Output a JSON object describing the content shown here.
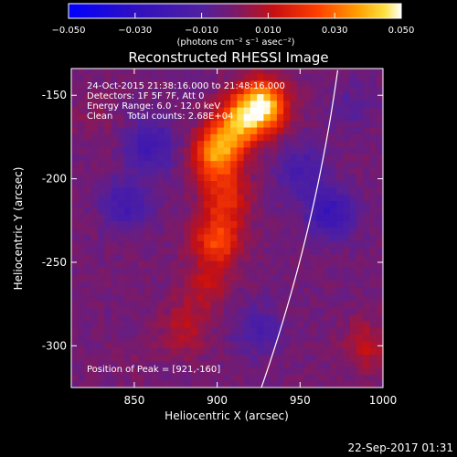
{
  "chart_data": {
    "type": "heatmap",
    "title": "Reconstructed RHESSI Image",
    "xlabel": "Heliocentric X (arcsec)",
    "ylabel": "Heliocentric Y (arcsec)",
    "xlim": [
      812,
      1000
    ],
    "ylim": [
      -325,
      -134
    ],
    "xticks": [
      850,
      900,
      950,
      1000
    ],
    "xtick_labels": [
      "850",
      "900",
      "950",
      "1000"
    ],
    "yticks": [
      -150,
      -200,
      -250,
      -300
    ],
    "ytick_labels": [
      "-150",
      "-200",
      "-250",
      "-300"
    ],
    "colorbar": {
      "range": [
        -0.05,
        0.05
      ],
      "ticks": [
        -0.05,
        -0.03,
        -0.01,
        0.01,
        0.03,
        0.05
      ],
      "tick_labels": [
        "−0.050",
        "−0.030",
        "−0.010",
        "0.010",
        "0.030",
        "0.050"
      ],
      "unit": "(photons cm⁻² s⁻¹ asec⁻²)"
    },
    "annotations": [
      "24-Oct-2015 21:38:16.000 to 21:48:16.000",
      "Detectors: 1F 5F 7F, Att 0",
      "Energy Range: 6.0 - 12.0 keV",
      "Clean     Total counts: 2.68E+04"
    ],
    "peak_label": "Position of Peak = [921,-160]",
    "peak": [
      921,
      -160
    ],
    "sources": [
      {
        "x": 927,
        "y": -156,
        "value": 0.05
      },
      {
        "x": 912,
        "y": -167,
        "value": 0.032
      },
      {
        "x": 900,
        "y": -185,
        "value": 0.038
      },
      {
        "x": 905,
        "y": -212,
        "value": 0.02
      },
      {
        "x": 900,
        "y": -237,
        "value": 0.026
      },
      {
        "x": 892,
        "y": -265,
        "value": 0.012
      },
      {
        "x": 880,
        "y": -290,
        "value": 0.011
      },
      {
        "x": 990,
        "y": -300,
        "value": 0.012
      },
      {
        "x": 825,
        "y": -160,
        "value": 0.004
      },
      {
        "x": 850,
        "y": -310,
        "value": 0.002
      },
      {
        "x": 860,
        "y": -180,
        "value": -0.018
      },
      {
        "x": 845,
        "y": -215,
        "value": -0.016
      },
      {
        "x": 950,
        "y": -195,
        "value": -0.014
      },
      {
        "x": 968,
        "y": -220,
        "value": -0.022
      },
      {
        "x": 925,
        "y": -290,
        "value": -0.012
      },
      {
        "x": 980,
        "y": -155,
        "value": -0.006
      }
    ]
  },
  "footer": {
    "date": "22-Sep-2017 01:31"
  }
}
